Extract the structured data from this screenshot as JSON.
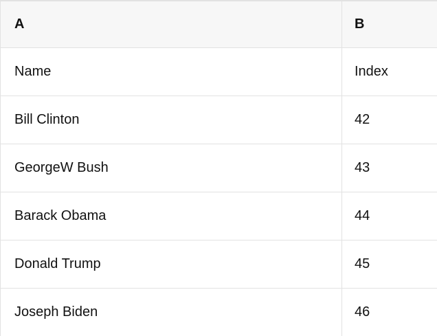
{
  "table": {
    "column_headers": [
      {
        "label": "A"
      },
      {
        "label": "B"
      }
    ],
    "rows": [
      {
        "a": "Name",
        "b": "Index"
      },
      {
        "a": "Bill Clinton",
        "b": "42"
      },
      {
        "a": "GeorgeW Bush",
        "b": "43"
      },
      {
        "a": "Barack Obama",
        "b": "44"
      },
      {
        "a": "Donald Trump",
        "b": "45"
      },
      {
        "a": "Joseph Biden",
        "b": "46"
      }
    ]
  },
  "colors": {
    "header_background": "#f7f7f7",
    "grid_border": "#e2e2e2",
    "text": "#111111",
    "row_background": "#ffffff"
  }
}
